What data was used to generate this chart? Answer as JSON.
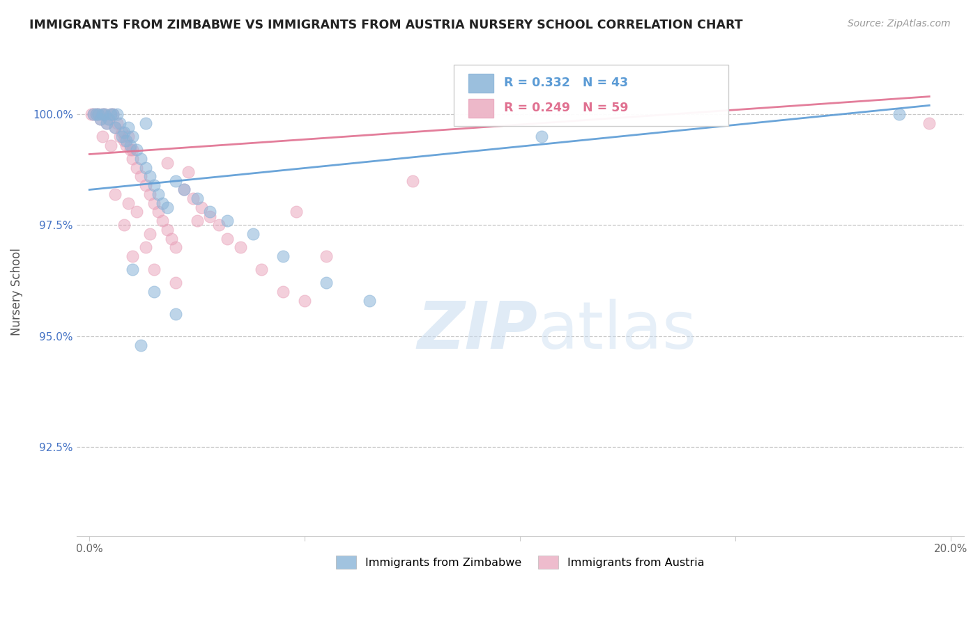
{
  "title": "IMMIGRANTS FROM ZIMBABWE VS IMMIGRANTS FROM AUSTRIA NURSERY SCHOOL CORRELATION CHART",
  "source": "Source: ZipAtlas.com",
  "ylabel": "Nursery School",
  "xlim": [
    -0.3,
    20.3
  ],
  "ylim": [
    90.5,
    101.5
  ],
  "xticks": [
    0.0,
    5.0,
    10.0,
    15.0,
    20.0
  ],
  "xticklabels": [
    "0.0%",
    "",
    "",
    "",
    "20.0%"
  ],
  "yticks": [
    92.5,
    95.0,
    97.5,
    100.0
  ],
  "yticklabels": [
    "92.5%",
    "95.0%",
    "97.5%",
    "100.0%"
  ],
  "legend_label1": "Immigrants from Zimbabwe",
  "legend_label2": "Immigrants from Austria",
  "R1": 0.332,
  "N1": 43,
  "R2": 0.249,
  "N2": 59,
  "color1": "#8ab4d8",
  "color2": "#e8a0b8",
  "trendline1_color": "#5b9bd5",
  "trendline2_color": "#e07090",
  "ytick_color": "#4472c4",
  "background_color": "#ffffff",
  "zimbabwe_x": [
    0.1,
    0.15,
    0.2,
    0.25,
    0.3,
    0.35,
    0.4,
    0.45,
    0.5,
    0.55,
    0.6,
    0.65,
    0.7,
    0.75,
    0.8,
    0.85,
    0.9,
    0.95,
    1.0,
    1.1,
    1.2,
    1.3,
    1.4,
    1.5,
    1.6,
    1.7,
    1.8,
    2.0,
    2.2,
    2.5,
    2.8,
    3.2,
    3.8,
    4.5,
    5.5,
    6.5,
    1.0,
    1.5,
    2.0,
    1.2,
    10.5,
    18.8,
    1.3
  ],
  "zimbabwe_y": [
    100.0,
    100.0,
    100.0,
    99.9,
    100.0,
    100.0,
    99.8,
    99.9,
    100.0,
    100.0,
    99.7,
    100.0,
    99.8,
    99.5,
    99.6,
    99.4,
    99.7,
    99.3,
    99.5,
    99.2,
    99.0,
    98.8,
    98.6,
    98.4,
    98.2,
    98.0,
    97.9,
    98.5,
    98.3,
    98.1,
    97.8,
    97.6,
    97.3,
    96.8,
    96.2,
    95.8,
    96.5,
    96.0,
    95.5,
    94.8,
    99.5,
    100.0,
    99.8
  ],
  "austria_x": [
    0.05,
    0.1,
    0.15,
    0.2,
    0.25,
    0.3,
    0.35,
    0.4,
    0.45,
    0.5,
    0.55,
    0.6,
    0.65,
    0.7,
    0.75,
    0.8,
    0.85,
    0.9,
    0.95,
    1.0,
    1.1,
    1.2,
    1.3,
    1.4,
    1.5,
    1.6,
    1.7,
    1.8,
    1.9,
    2.0,
    2.2,
    2.4,
    2.6,
    2.8,
    3.0,
    3.5,
    4.0,
    4.5,
    5.0,
    1.0,
    1.5,
    2.0,
    0.8,
    1.3,
    0.6,
    1.1,
    0.9,
    1.4,
    2.5,
    3.2,
    5.5,
    7.5,
    0.3,
    0.5,
    1.8,
    2.3,
    4.8,
    1.0,
    19.5
  ],
  "austria_y": [
    100.0,
    100.0,
    100.0,
    100.0,
    99.9,
    100.0,
    100.0,
    99.8,
    99.9,
    100.0,
    100.0,
    99.7,
    99.8,
    99.5,
    99.6,
    99.4,
    99.3,
    99.5,
    99.2,
    99.0,
    98.8,
    98.6,
    98.4,
    98.2,
    98.0,
    97.8,
    97.6,
    97.4,
    97.2,
    97.0,
    98.3,
    98.1,
    97.9,
    97.7,
    97.5,
    97.0,
    96.5,
    96.0,
    95.8,
    96.8,
    96.5,
    96.2,
    97.5,
    97.0,
    98.2,
    97.8,
    98.0,
    97.3,
    97.6,
    97.2,
    96.8,
    98.5,
    99.5,
    99.3,
    98.9,
    98.7,
    97.8,
    99.2,
    99.8
  ]
}
